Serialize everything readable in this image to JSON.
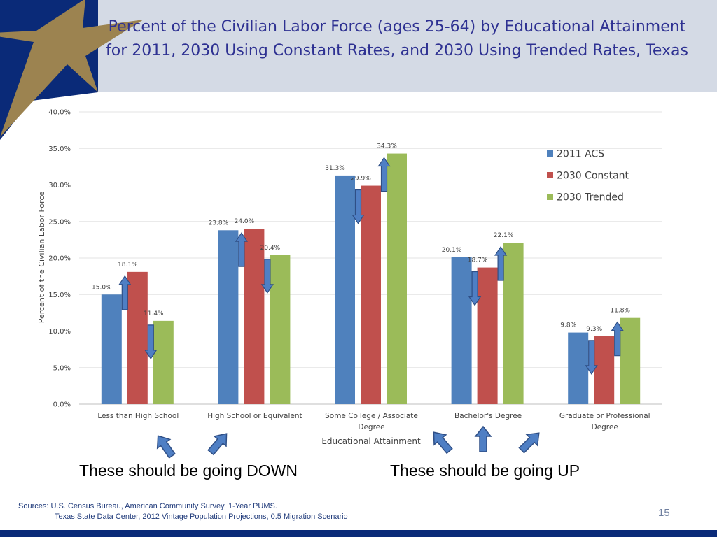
{
  "slide": {
    "title": "Percent of the Civilian Labor Force (ages 25-64) by Educational Attainment for 2011, 2030 Using Constant Rates, and 2030 Using Trended Rates, Texas",
    "caption_down": "These should be going DOWN",
    "caption_up": "These should be going UP",
    "sources_line1": "Sources: U.S. Census Bureau, American Community Survey, 1-Year PUMS.",
    "sources_line2": "Texas State Data Center, 2012 Vintage Population Projections, 0.5 Migration Scenario",
    "page_number": "15"
  },
  "colors": {
    "title": "#2e3192",
    "corner_navy": "#0a2a78",
    "star_gold": "#9c8350",
    "arrow_fill": "#4f7fc4",
    "arrow_stroke": "#2f4f86"
  },
  "chart_data": {
    "type": "bar",
    "title": "Percent of the Civilian Labor Force (ages 25-64) by Educational Attainment for 2011, 2030 Using Constant Rates, and 2030 Using Trended Rates, Texas",
    "xlabel": "Educational Attainment",
    "ylabel": "Percent of the Civilian Labor Force",
    "ylim": [
      0,
      40
    ],
    "yticks": [
      "0.0%",
      "5.0%",
      "10.0%",
      "15.0%",
      "20.0%",
      "25.0%",
      "30.0%",
      "35.0%",
      "40.0%"
    ],
    "yticks_values": [
      0,
      5,
      10,
      15,
      20,
      25,
      30,
      35,
      40
    ],
    "grid": true,
    "legend_position": "top-right",
    "categories": [
      [
        "Less than High School"
      ],
      [
        "High School or Equivalent"
      ],
      [
        "Some College / Associate",
        "Degree"
      ],
      [
        "Bachelor's Degree"
      ],
      [
        "Graduate or Professional",
        "Degree"
      ]
    ],
    "series": [
      {
        "name": "2011 ACS",
        "color": "#4f81bd",
        "values": [
          15.0,
          23.8,
          31.3,
          20.1,
          9.8
        ],
        "labels": [
          "15.0%",
          "23.8%",
          "31.3%",
          "20.1%",
          "9.8%"
        ]
      },
      {
        "name": "2030 Constant",
        "color": "#c0504d",
        "values": [
          18.1,
          24.0,
          29.9,
          18.7,
          9.3
        ],
        "labels": [
          "18.1%",
          "24.0%",
          "29.9%",
          "18.7%",
          "9.3%"
        ]
      },
      {
        "name": "2030 Trended",
        "color": "#9bbb59",
        "values": [
          11.4,
          20.4,
          34.3,
          22.1,
          11.8
        ],
        "labels": [
          "11.4%",
          "20.4%",
          "34.3%",
          "22.1%",
          "11.8%"
        ]
      }
    ],
    "annotations": {
      "bar_arrows": [
        {
          "category": 0,
          "series": 1,
          "direction": "up"
        },
        {
          "category": 0,
          "series": 2,
          "direction": "down"
        },
        {
          "category": 1,
          "series": 1,
          "direction": "up"
        },
        {
          "category": 1,
          "series": 2,
          "direction": "down"
        },
        {
          "category": 2,
          "series": 1,
          "direction": "down"
        },
        {
          "category": 2,
          "series": 2,
          "direction": "up"
        },
        {
          "category": 3,
          "series": 1,
          "direction": "down"
        },
        {
          "category": 3,
          "series": 2,
          "direction": "up"
        },
        {
          "category": 4,
          "series": 1,
          "direction": "down"
        },
        {
          "category": 4,
          "series": 2,
          "direction": "up"
        }
      ]
    }
  }
}
